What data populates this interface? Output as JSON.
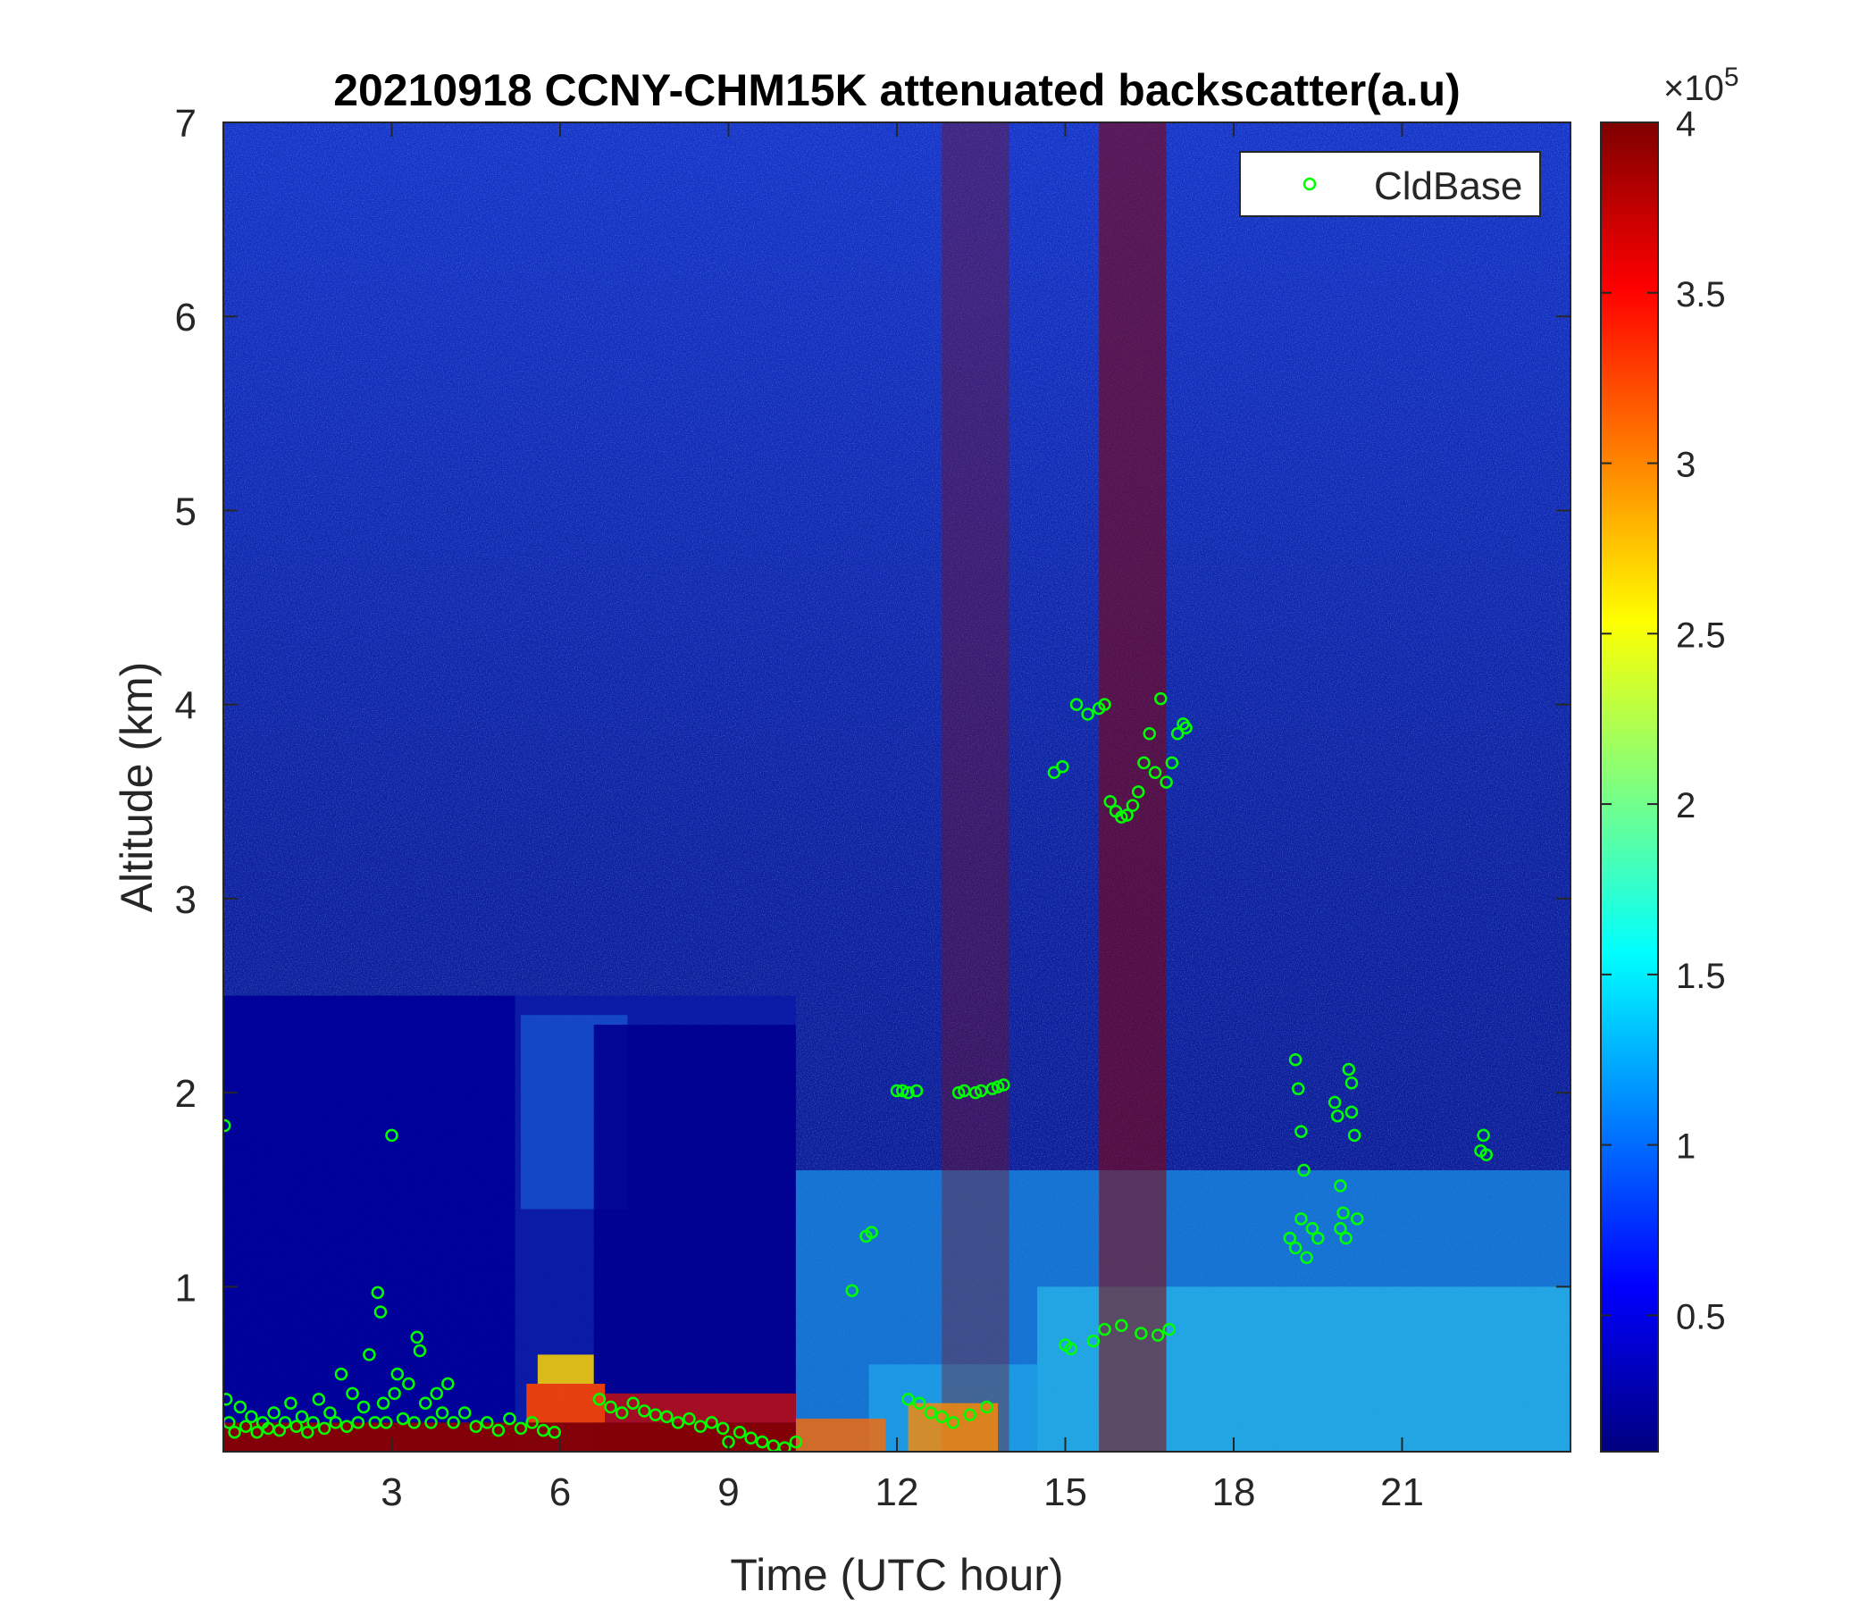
{
  "chart_data": {
    "type": "heatmap",
    "title": "20210918 CCNY-CHM15K attenuated backscatter(a.u)",
    "xlabel": "Time (UTC hour)",
    "ylabel": "Altitude (km)",
    "xlim": [
      0,
      24
    ],
    "ylim": [
      0.15,
      7
    ],
    "xticks": [
      3,
      6,
      9,
      12,
      15,
      18,
      21
    ],
    "yticks": [
      1,
      2,
      3,
      4,
      5,
      6,
      7
    ],
    "colorbar": {
      "min": 10000,
      "max": 400000,
      "ticks": [
        0.5,
        1,
        1.5,
        2,
        2.5,
        3,
        3.5,
        4
      ],
      "multiplier_base": "×10",
      "multiplier_exponent": "5",
      "colormap": "jet"
    },
    "colors": {
      "jet": [
        "#00007f",
        "#0000ff",
        "#007fff",
        "#00ffff",
        "#7fff7f",
        "#ffff00",
        "#ff7f00",
        "#ff0000",
        "#7f0000"
      ],
      "marker": "#00ff00"
    },
    "legend": {
      "entries": [
        "CldBase"
      ],
      "placement": "top-right"
    },
    "grid": false,
    "series": [
      {
        "name": "CldBase",
        "marker": "circle",
        "points": [
          [
            0.02,
            1.83
          ],
          [
            0.05,
            0.42
          ],
          [
            0.1,
            0.3
          ],
          [
            0.2,
            0.25
          ],
          [
            0.3,
            0.38
          ],
          [
            0.4,
            0.28
          ],
          [
            0.5,
            0.33
          ],
          [
            0.6,
            0.25
          ],
          [
            0.7,
            0.3
          ],
          [
            0.8,
            0.27
          ],
          [
            0.9,
            0.35
          ],
          [
            1.0,
            0.26
          ],
          [
            1.1,
            0.3
          ],
          [
            1.2,
            0.4
          ],
          [
            1.3,
            0.28
          ],
          [
            1.4,
            0.33
          ],
          [
            1.5,
            0.25
          ],
          [
            1.6,
            0.3
          ],
          [
            1.7,
            0.42
          ],
          [
            1.8,
            0.27
          ],
          [
            1.9,
            0.35
          ],
          [
            2.0,
            0.3
          ],
          [
            2.1,
            0.55
          ],
          [
            2.2,
            0.28
          ],
          [
            2.3,
            0.45
          ],
          [
            2.4,
            0.3
          ],
          [
            2.5,
            0.38
          ],
          [
            2.6,
            0.65
          ],
          [
            2.7,
            0.3
          ],
          [
            2.75,
            0.97
          ],
          [
            2.8,
            0.87
          ],
          [
            2.85,
            0.4
          ],
          [
            2.9,
            0.3
          ],
          [
            3.0,
            1.78
          ],
          [
            3.05,
            0.45
          ],
          [
            3.1,
            0.55
          ],
          [
            3.2,
            0.32
          ],
          [
            3.3,
            0.5
          ],
          [
            3.4,
            0.3
          ],
          [
            3.45,
            0.74
          ],
          [
            3.5,
            0.67
          ],
          [
            3.6,
            0.4
          ],
          [
            3.7,
            0.3
          ],
          [
            3.8,
            0.45
          ],
          [
            3.9,
            0.35
          ],
          [
            4.0,
            0.5
          ],
          [
            4.1,
            0.3
          ],
          [
            4.3,
            0.35
          ],
          [
            4.5,
            0.28
          ],
          [
            4.7,
            0.3
          ],
          [
            4.9,
            0.26
          ],
          [
            5.1,
            0.32
          ],
          [
            5.3,
            0.27
          ],
          [
            5.5,
            0.3
          ],
          [
            5.7,
            0.26
          ],
          [
            5.9,
            0.25
          ],
          [
            6.7,
            0.42
          ],
          [
            6.9,
            0.38
          ],
          [
            7.1,
            0.35
          ],
          [
            7.3,
            0.4
          ],
          [
            7.5,
            0.36
          ],
          [
            7.7,
            0.34
          ],
          [
            7.9,
            0.33
          ],
          [
            8.1,
            0.3
          ],
          [
            8.3,
            0.32
          ],
          [
            8.5,
            0.28
          ],
          [
            8.7,
            0.3
          ],
          [
            8.9,
            0.27
          ],
          [
            9.0,
            0.2
          ],
          [
            9.2,
            0.25
          ],
          [
            9.4,
            0.22
          ],
          [
            9.6,
            0.2
          ],
          [
            9.8,
            0.18
          ],
          [
            10.0,
            0.17
          ],
          [
            10.2,
            0.2
          ],
          [
            11.2,
            0.98
          ],
          [
            11.45,
            1.26
          ],
          [
            11.55,
            1.28
          ],
          [
            12.0,
            2.01
          ],
          [
            12.1,
            2.01
          ],
          [
            12.2,
            2.0
          ],
          [
            12.35,
            2.01
          ],
          [
            12.2,
            0.42
          ],
          [
            12.4,
            0.4
          ],
          [
            12.6,
            0.35
          ],
          [
            12.8,
            0.33
          ],
          [
            13.0,
            0.3
          ],
          [
            13.1,
            2.0
          ],
          [
            13.2,
            2.01
          ],
          [
            13.3,
            0.34
          ],
          [
            13.4,
            2.0
          ],
          [
            13.5,
            2.01
          ],
          [
            13.6,
            0.38
          ],
          [
            13.7,
            2.02
          ],
          [
            13.8,
            2.03
          ],
          [
            13.9,
            2.04
          ],
          [
            14.8,
            3.65
          ],
          [
            14.95,
            3.68
          ],
          [
            15.0,
            0.7
          ],
          [
            15.1,
            0.68
          ],
          [
            15.2,
            4.0
          ],
          [
            15.4,
            3.95
          ],
          [
            15.5,
            0.72
          ],
          [
            15.6,
            3.98
          ],
          [
            15.7,
            4.0
          ],
          [
            15.7,
            0.78
          ],
          [
            15.8,
            3.5
          ],
          [
            15.9,
            3.45
          ],
          [
            16.0,
            3.42
          ],
          [
            16.0,
            0.8
          ],
          [
            16.1,
            3.43
          ],
          [
            16.2,
            3.48
          ],
          [
            16.3,
            3.55
          ],
          [
            16.35,
            0.76
          ],
          [
            16.4,
            3.7
          ],
          [
            16.5,
            3.85
          ],
          [
            16.6,
            3.65
          ],
          [
            16.65,
            0.75
          ],
          [
            16.7,
            4.03
          ],
          [
            16.8,
            3.6
          ],
          [
            16.85,
            0.78
          ],
          [
            16.9,
            3.7
          ],
          [
            17.0,
            3.85
          ],
          [
            17.1,
            3.9
          ],
          [
            17.15,
            3.88
          ],
          [
            19.1,
            2.17
          ],
          [
            19.15,
            2.02
          ],
          [
            19.2,
            1.8
          ],
          [
            19.25,
            1.6
          ],
          [
            19.0,
            1.25
          ],
          [
            19.1,
            1.2
          ],
          [
            19.2,
            1.35
          ],
          [
            19.3,
            1.15
          ],
          [
            19.4,
            1.3
          ],
          [
            19.5,
            1.25
          ],
          [
            19.8,
            1.95
          ],
          [
            19.85,
            1.88
          ],
          [
            19.9,
            1.52
          ],
          [
            19.95,
            1.38
          ],
          [
            19.9,
            1.3
          ],
          [
            20.0,
            1.25
          ],
          [
            20.05,
            2.12
          ],
          [
            20.1,
            2.05
          ],
          [
            20.1,
            1.9
          ],
          [
            20.15,
            1.78
          ],
          [
            20.2,
            1.35
          ],
          [
            22.4,
            1.7
          ],
          [
            22.45,
            1.78
          ],
          [
            22.5,
            1.68
          ]
        ]
      }
    ]
  }
}
